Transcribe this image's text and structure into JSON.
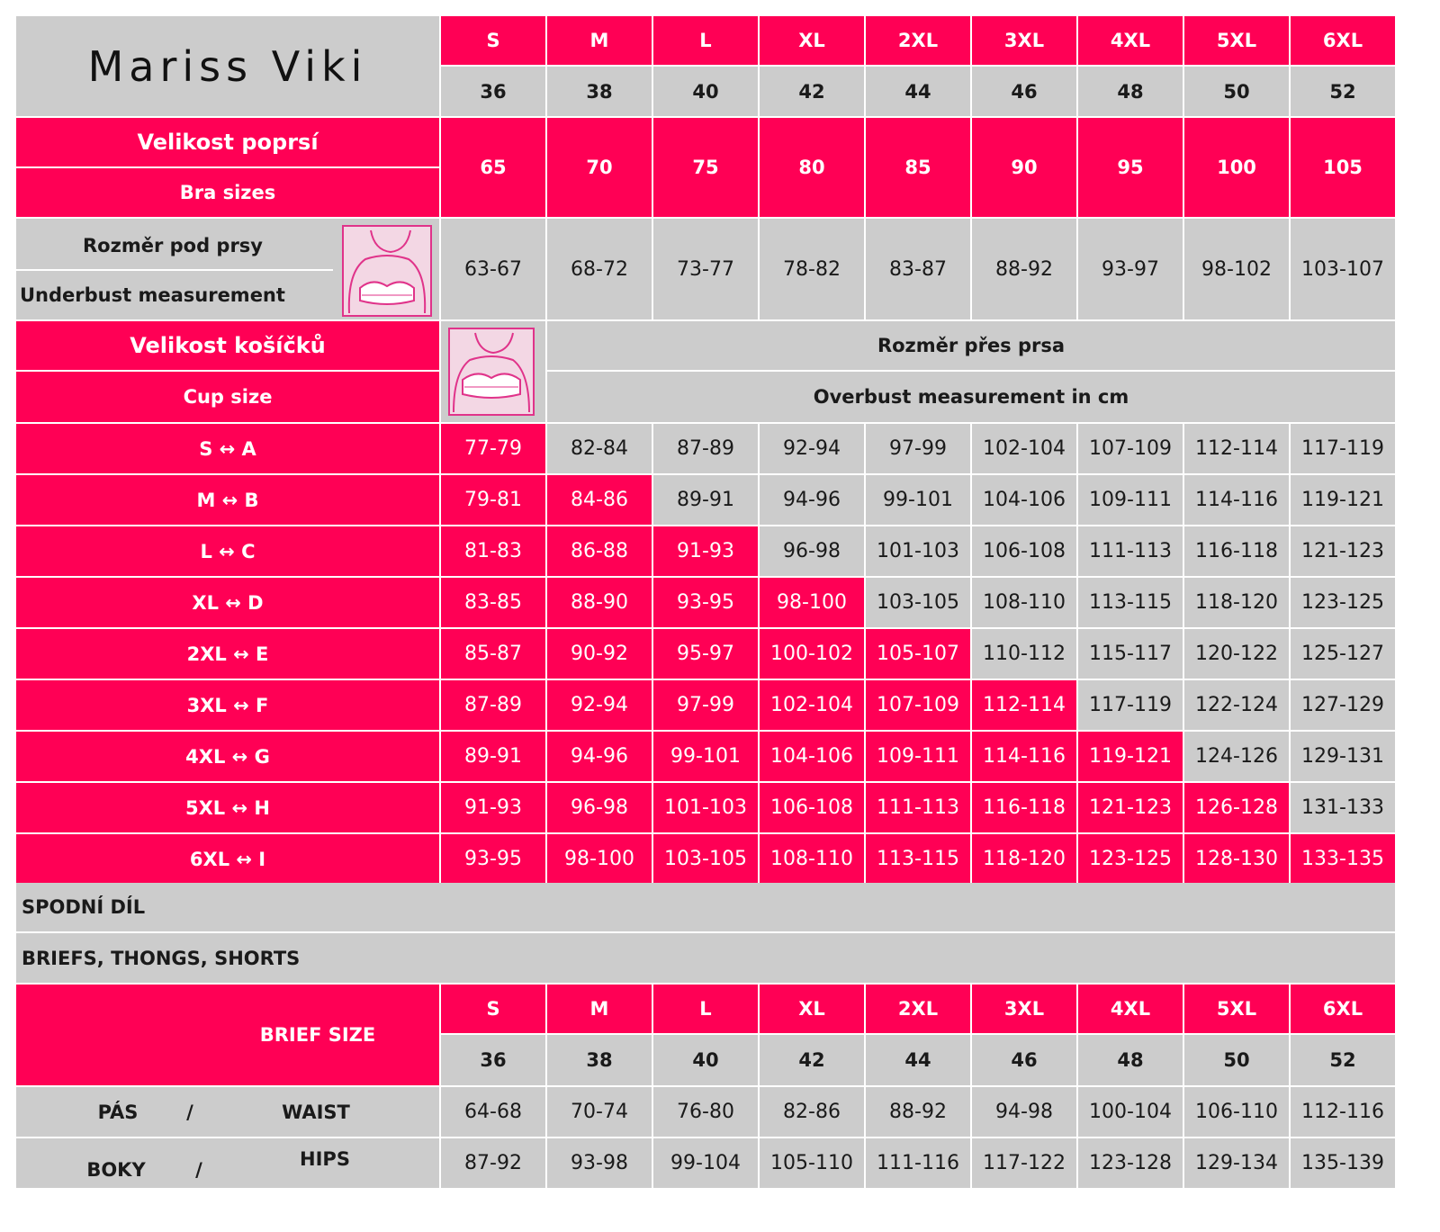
{
  "brand": "Mariss Viki",
  "sizes": [
    "S",
    "M",
    "L",
    "XL",
    "2XL",
    "3XL",
    "4XL",
    "5XL",
    "6XL"
  ],
  "eu_sizes": [
    "36",
    "38",
    "40",
    "42",
    "44",
    "46",
    "48",
    "50",
    "52"
  ],
  "bra_size": {
    "label_cz": "Velikost poprsí",
    "label_en": "Bra sizes",
    "values": [
      "65",
      "70",
      "75",
      "80",
      "85",
      "90",
      "95",
      "100",
      "105"
    ]
  },
  "underbust": {
    "label_cz": "Rozměr pod prsy",
    "label_en": "Underbust measurement",
    "values": [
      "63-67",
      "68-72",
      "73-77",
      "78-82",
      "83-87",
      "88-92",
      "93-97",
      "98-102",
      "103-107"
    ]
  },
  "cup": {
    "label_cz": "Velikost košíčků",
    "label_en": "Cup size",
    "overbust_cz": "Rozměr přes prsa",
    "overbust_en": "Overbust measurement in cm",
    "rows": [
      {
        "label": "S ↔ A",
        "values": [
          "77-79",
          "82-84",
          "87-89",
          "92-94",
          "97-99",
          "102-104",
          "107-109",
          "112-114",
          "117-119"
        ]
      },
      {
        "label": "M ↔ B",
        "values": [
          "79-81",
          "84-86",
          "89-91",
          "94-96",
          "99-101",
          "104-106",
          "109-111",
          "114-116",
          "119-121"
        ]
      },
      {
        "label": "L ↔ C",
        "values": [
          "81-83",
          "86-88",
          "91-93",
          "96-98",
          "101-103",
          "106-108",
          "111-113",
          "116-118",
          "121-123"
        ]
      },
      {
        "label": "XL ↔ D",
        "values": [
          "83-85",
          "88-90",
          "93-95",
          "98-100",
          "103-105",
          "108-110",
          "113-115",
          "118-120",
          "123-125"
        ]
      },
      {
        "label": "2XL ↔ E",
        "values": [
          "85-87",
          "90-92",
          "95-97",
          "100-102",
          "105-107",
          "110-112",
          "115-117",
          "120-122",
          "125-127"
        ]
      },
      {
        "label": "3XL ↔ F",
        "values": [
          "87-89",
          "92-94",
          "97-99",
          "102-104",
          "107-109",
          "112-114",
          "117-119",
          "122-124",
          "127-129"
        ]
      },
      {
        "label": "4XL ↔ G",
        "values": [
          "89-91",
          "94-96",
          "99-101",
          "104-106",
          "109-111",
          "114-116",
          "119-121",
          "124-126",
          "129-131"
        ]
      },
      {
        "label": "5XL ↔ H",
        "values": [
          "91-93",
          "96-98",
          "101-103",
          "106-108",
          "111-113",
          "116-118",
          "121-123",
          "126-128",
          "131-133"
        ]
      },
      {
        "label": "6XL ↔ I",
        "values": [
          "93-95",
          "98-100",
          "103-105",
          "108-110",
          "113-115",
          "118-120",
          "123-125",
          "128-130",
          "133-135"
        ]
      }
    ]
  },
  "bottom": {
    "title_cz": "SPODNÍ DÍL",
    "title_en": "BRIEFS, THONGS, SHORTS",
    "brief_size_label": "BRIEF SIZE",
    "waist": {
      "label_cz": "PÁS",
      "sep": "/",
      "label_en": "WAIST",
      "values": [
        "64-68",
        "70-74",
        "76-80",
        "82-86",
        "88-92",
        "94-98",
        "100-104",
        "106-110",
        "112-116"
      ]
    },
    "hips": {
      "label_cz": "BOKY",
      "sep": "/",
      "label_en": "HIPS",
      "values": [
        "87-92",
        "93-98",
        "99-104",
        "105-110",
        "111-116",
        "117-122",
        "123-128",
        "129-134",
        "135-139"
      ]
    }
  },
  "colors": {
    "accent": "#ff0055",
    "gray": "#cccccc",
    "text": "#1a1a1a"
  },
  "icons": [
    "underbust-figure-icon",
    "overbust-figure-icon"
  ]
}
